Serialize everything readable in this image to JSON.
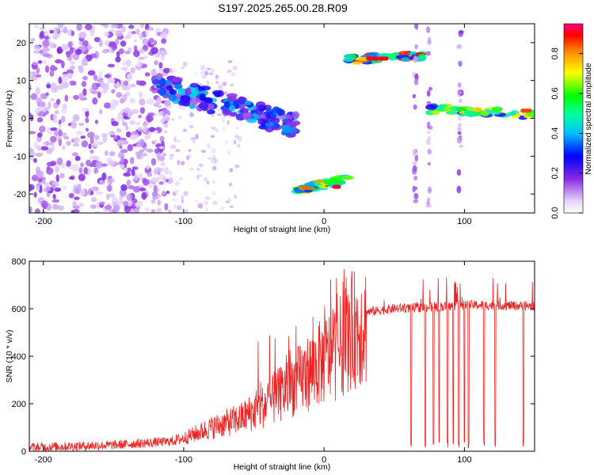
{
  "title": "S197.2025.265.00.28.R09",
  "chart_data": [
    {
      "type": "heatmap",
      "name": "spectrogram",
      "xlabel": "Height of straight line (km)",
      "ylabel": "Frequency (Hz)",
      "xlim": [
        -210,
        150
      ],
      "ylim": [
        -25,
        25
      ],
      "xticks": [
        -200,
        -100,
        0,
        100
      ],
      "yticks": [
        -20,
        -10,
        0,
        10,
        20
      ],
      "colorbar": {
        "label": "Normalized spectral amplitude",
        "range": [
          0,
          0.95
        ],
        "ticks": [
          "0.0",
          "0.2",
          "0.4",
          "0.6",
          "0.8"
        ],
        "tick_values": [
          0,
          0.2,
          0.4,
          0.6,
          0.8
        ]
      },
      "features": [
        {
          "name": "descending-band",
          "x": [
            -120,
            -20
          ],
          "freq": [
            9,
            -2
          ],
          "amplitude": 0.45
        },
        {
          "name": "lower-arc",
          "x": [
            -20,
            18
          ],
          "freq": [
            -19,
            -16
          ],
          "amplitude": 0.9
        },
        {
          "name": "upper-line",
          "x": [
            17,
            72
          ],
          "freq": [
            15.5,
            16.5
          ],
          "amplitude": 0.95
        },
        {
          "name": "zero-line",
          "x": [
            75,
            150
          ],
          "freq": [
            2.5,
            1
          ],
          "amplitude": 0.8
        }
      ]
    },
    {
      "type": "line",
      "name": "snr",
      "xlabel": "Height of straight line (km)",
      "ylabel": "SNR (10 * v/v)",
      "xlim": [
        -210,
        150
      ],
      "ylim": [
        0,
        800
      ],
      "xticks": [
        -200,
        -100,
        0,
        100
      ],
      "yticks": [
        0,
        200,
        400,
        600,
        800
      ],
      "color": "#ee2222",
      "series": [
        {
          "name": "SNR",
          "x": [
            -210,
            -150,
            -110,
            -100,
            -80,
            -60,
            -40,
            -20,
            0,
            10,
            20,
            30,
            50,
            75,
            100,
            125,
            150
          ],
          "values": [
            20,
            30,
            45,
            60,
            110,
            150,
            220,
            320,
            420,
            470,
            560,
            590,
            605,
            610,
            620,
            618,
            615
          ]
        }
      ],
      "dropouts_x": [
        62,
        72,
        78,
        82,
        88,
        92,
        96,
        100,
        103,
        114,
        122,
        142
      ]
    }
  ]
}
